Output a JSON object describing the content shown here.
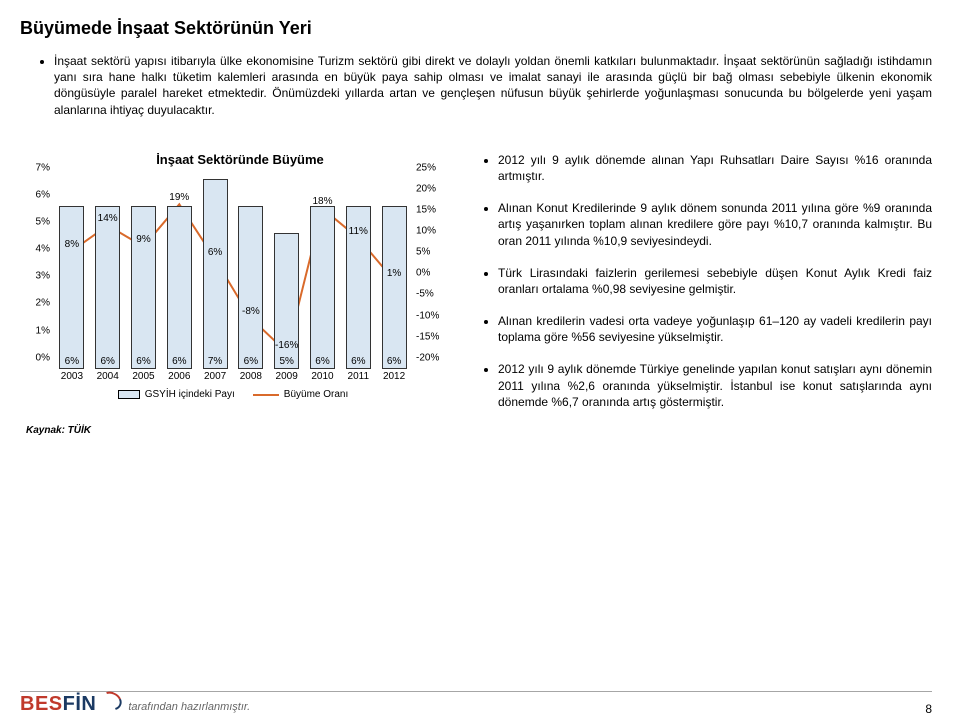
{
  "title": "Büyümede İnşaat Sektörünün Yeri",
  "intro_bullets": [
    "İnşaat sektörü yapısı itibarıyla ülke ekonomisine Turizm sektörü gibi direkt ve dolaylı yoldan önemli katkıları bulunmaktadır. İnşaat sektörünün sağladığı istihdamın yanı sıra hane halkı tüketim kalemleri arasında en büyük paya sahip olması ve imalat sanayi ile arasında güçlü bir bağ olması sebebiyle ülkenin ekonomik döngüsüyle paralel hareket etmektedir. Önümüzdeki yıllarda artan ve gençleşen nüfusun büyük şehirlerde yoğunlaşması sonucunda bu bölgelerde yeni yaşam alanlarına ihtiyaç duyulacaktır."
  ],
  "right_bullets": [
    "2012 yılı 9 aylık dönemde alınan Yapı Ruhsatları Daire Sayısı %16 oranında artmıştır.",
    "Alınan Konut Kredilerinde 9 aylık dönem sonunda 2011 yılına göre %9 oranında artış yaşanırken toplam alınan kredilere göre payı %10,7 oranında kalmıştır. Bu oran 2011 yılında %10,9 seviyesindeydi.",
    "Türk Lirasındaki faizlerin gerilemesi sebebiyle düşen Konut Aylık Kredi faiz oranları ortalama %0,98 seviyesine gelmiştir.",
    "Alınan kredilerin vadesi orta vadeye yoğunlaşıp 61–120 ay vadeli kredilerin payı toplama göre %56 seviyesine yükselmiştir.",
    "2012 yılı 9 aylık dönemde Türkiye genelinde yapılan konut satışları aynı dönemin 2011 yılına %2,6 oranında yükselmiştir. İstanbul ise konut satışlarında aynı dönemde %6,7 oranında artış göstermiştir."
  ],
  "chart": {
    "title": "İnşaat Sektöründe Büyüme",
    "type": "bar+line",
    "categories": [
      "2003",
      "2004",
      "2005",
      "2006",
      "2007",
      "2008",
      "2009",
      "2010",
      "2011",
      "2012"
    ],
    "bars": {
      "values": [
        6,
        6,
        6,
        6,
        7,
        6,
        5,
        6,
        6,
        6
      ],
      "labels": [
        "6%",
        "6%",
        "6%",
        "6%",
        "7%",
        "6%",
        "5%",
        "6%",
        "6%",
        "6%"
      ],
      "fill_color": "#d9e6f2",
      "border_color": "#333333",
      "width_ratio": 0.7
    },
    "line": {
      "values": [
        8,
        14,
        9,
        19,
        6,
        -8,
        -16,
        18,
        11,
        1
      ],
      "labels": [
        "8%",
        "14%",
        "9%",
        "19%",
        "6%",
        "-8%",
        "-16%",
        "18%",
        "11%",
        "1%"
      ],
      "color": "#d96a2b",
      "width": 2,
      "marker_size": 0
    },
    "axis_left": {
      "min": 0,
      "max": 7,
      "step": 1,
      "ticks": [
        "0%",
        "1%",
        "2%",
        "3%",
        "4%",
        "5%",
        "6%",
        "7%"
      ],
      "fontsize": 10
    },
    "axis_right": {
      "min": -20,
      "max": 25,
      "step": 5,
      "ticks": [
        "-20%",
        "-15%",
        "-10%",
        "-5%",
        "0%",
        "5%",
        "10%",
        "15%",
        "20%",
        "25%"
      ],
      "fontsize": 10
    },
    "legend": {
      "bar_label": "GSYİH içindeki Payı",
      "line_label": "Büyüme Oranı"
    },
    "background_color": "#ffffff"
  },
  "source": "Kaynak: TÜİK",
  "footer": {
    "logo_text": "BESFİN",
    "logo_color_left": "#c0392b",
    "logo_color_right": "#1b3a63",
    "tagline": "tarafından hazırlanmıştır.",
    "page_number": "8"
  }
}
